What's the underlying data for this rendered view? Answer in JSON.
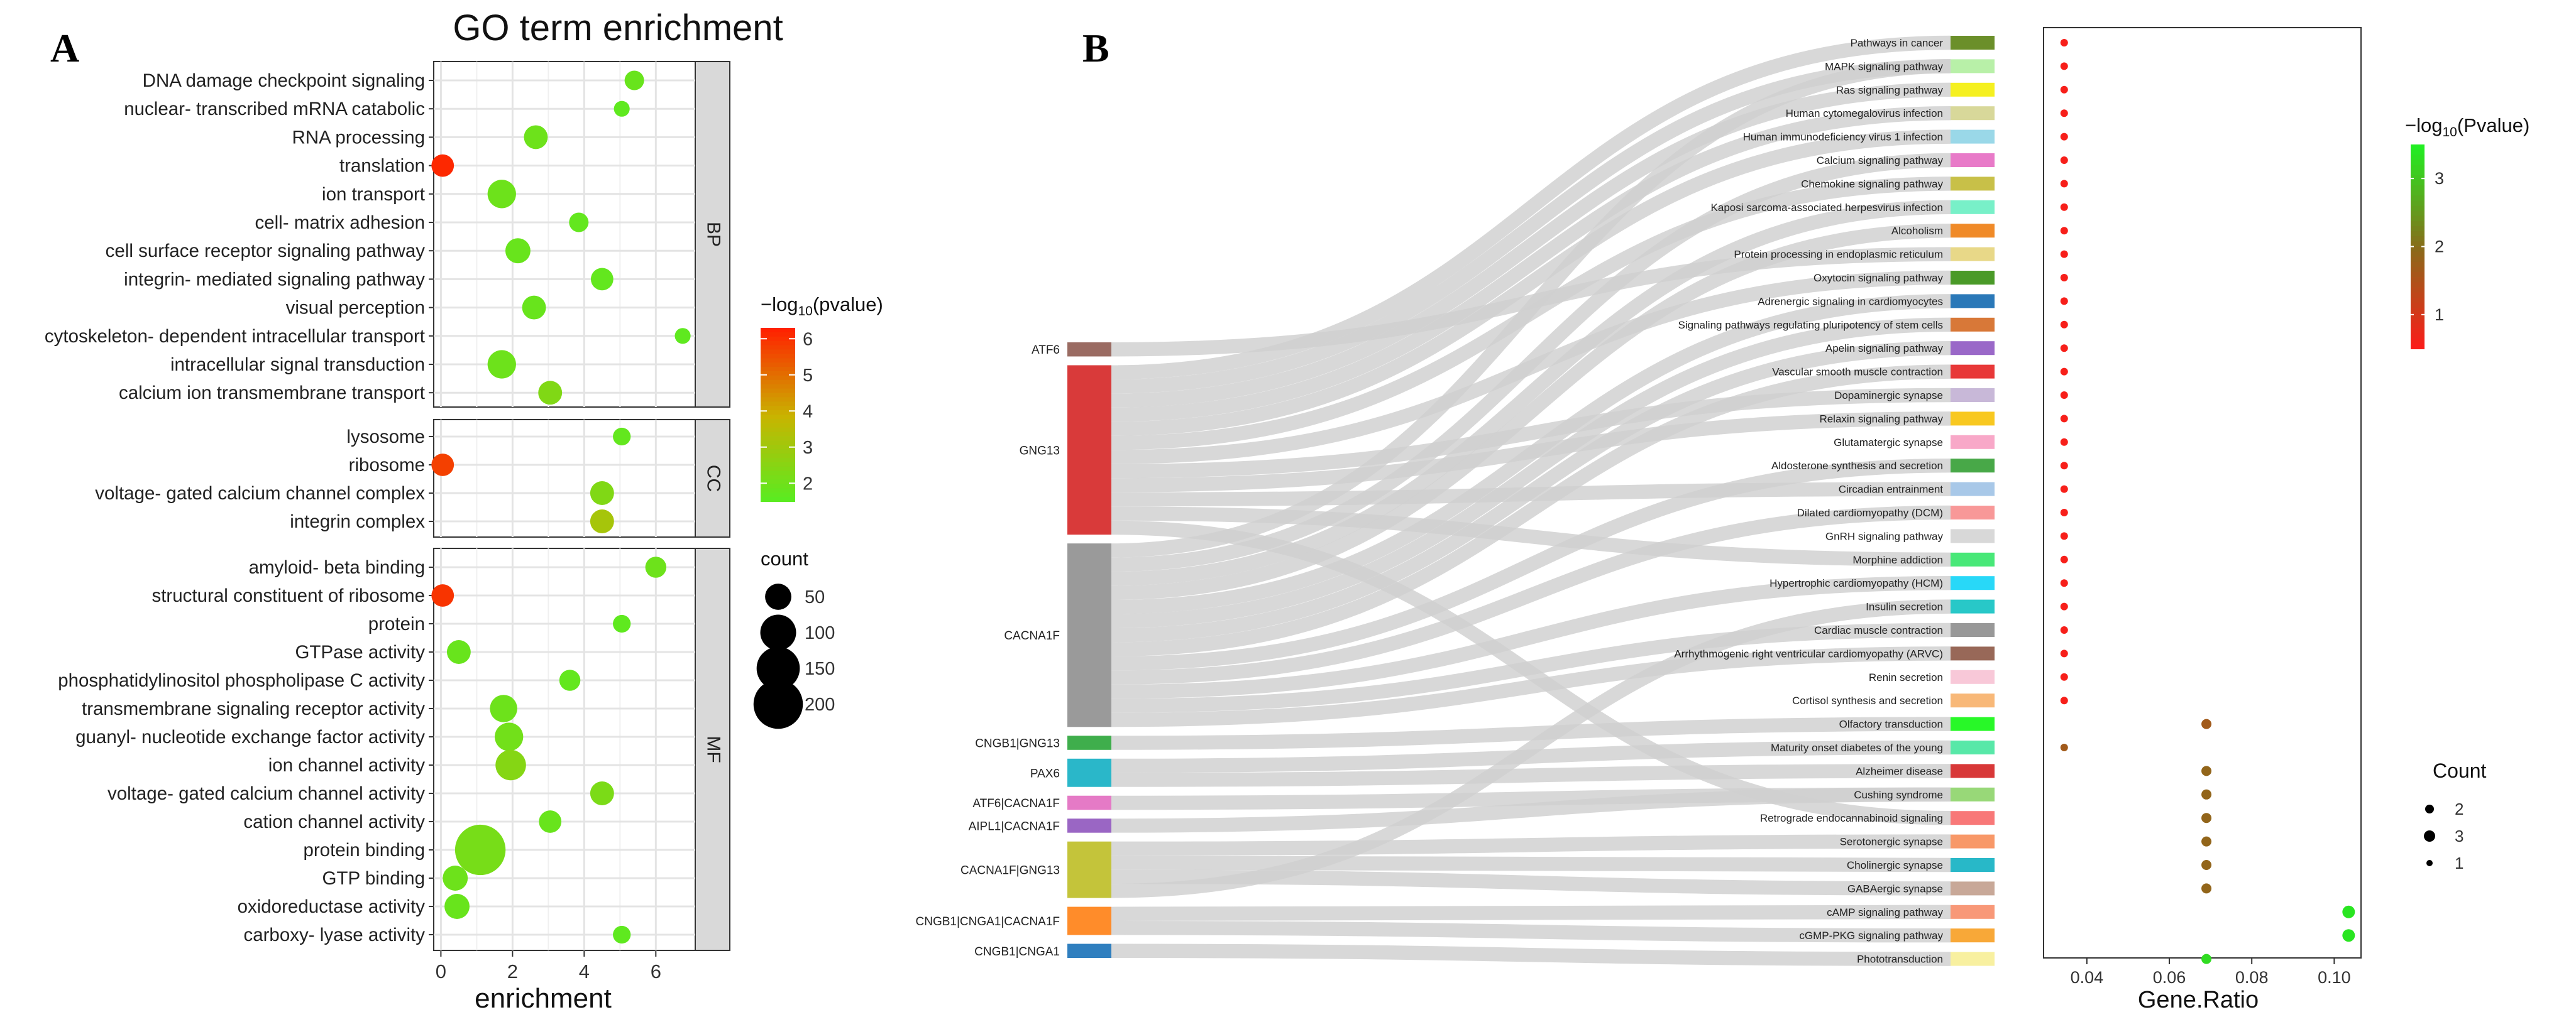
{
  "figure": {
    "panel_a_letter": "A",
    "panel_b_letter": "B"
  },
  "chart_data": [
    {
      "id": "panel_a",
      "type": "scatter",
      "title": "GO term enrichment",
      "xlabel": "enrichment",
      "ylabel": "",
      "xlim": [
        -0.2,
        7.1
      ],
      "xticks": [
        0,
        2,
        4,
        6
      ],
      "grid": true,
      "colors": {
        "low": "#55ee22",
        "mid": "#c8b400",
        "high": "#ff2200"
      },
      "legend_color_title_prefix": "−log",
      "legend_color_title_sub": "10",
      "legend_color_title_suffix": "(pvalue)",
      "legend_color_ticks": [
        2,
        3,
        4,
        5,
        6
      ],
      "legend_color_range": [
        1.5,
        6.3
      ],
      "legend_size_title": "count",
      "legend_size_values": [
        50,
        100,
        150,
        200
      ],
      "facets": [
        {
          "label": "BP",
          "terms": [
            {
              "term": "DNA damage checkpoint signaling",
              "x": 5.4,
              "neglogp": 1.9,
              "count": 25
            },
            {
              "term": "nuclear- transcribed mRNA catabolic",
              "x": 5.05,
              "neglogp": 1.7,
              "count": 15
            },
            {
              "term": "RNA processing",
              "x": 2.65,
              "neglogp": 2.0,
              "count": 40
            },
            {
              "term": "translation",
              "x": 0.05,
              "neglogp": 6.2,
              "count": 35
            },
            {
              "term": "ion transport",
              "x": 1.7,
              "neglogp": 2.0,
              "count": 60
            },
            {
              "term": "cell- matrix adhesion",
              "x": 3.85,
              "neglogp": 1.8,
              "count": 25
            },
            {
              "term": "cell surface receptor signaling pathway",
              "x": 2.15,
              "neglogp": 1.9,
              "count": 45
            },
            {
              "term": "integrin- mediated signaling pathway",
              "x": 4.5,
              "neglogp": 1.8,
              "count": 35
            },
            {
              "term": "visual perception",
              "x": 2.6,
              "neglogp": 1.9,
              "count": 40
            },
            {
              "term": "cytoskeleton- dependent intracellular transport",
              "x": 6.75,
              "neglogp": 1.7,
              "count": 15
            },
            {
              "term": "intracellular signal transduction",
              "x": 1.7,
              "neglogp": 2.0,
              "count": 60
            },
            {
              "term": "calcium ion transmembrane transport",
              "x": 3.05,
              "neglogp": 2.4,
              "count": 40
            }
          ]
        },
        {
          "label": "CC",
          "terms": [
            {
              "term": "lysosome",
              "x": 5.05,
              "neglogp": 1.8,
              "count": 20
            },
            {
              "term": "ribosome",
              "x": 0.05,
              "neglogp": 5.8,
              "count": 35
            },
            {
              "term": "voltage- gated calcium channel complex",
              "x": 4.5,
              "neglogp": 2.4,
              "count": 40
            },
            {
              "term": "integrin complex",
              "x": 4.5,
              "neglogp": 3.2,
              "count": 40
            }
          ]
        },
        {
          "label": "MF",
          "terms": [
            {
              "term": "amyloid- beta binding",
              "x": 6.0,
              "neglogp": 2.0,
              "count": 30
            },
            {
              "term": "structural constituent of ribosome",
              "x": 0.05,
              "neglogp": 6.0,
              "count": 35
            },
            {
              "term": "protein",
              "x": 5.05,
              "neglogp": 1.7,
              "count": 20
            },
            {
              "term": "GTPase activity",
              "x": 0.5,
              "neglogp": 1.9,
              "count": 40
            },
            {
              "term": "phosphatidylinositol phospholipase C activity",
              "x": 3.6,
              "neglogp": 1.8,
              "count": 30
            },
            {
              "term": "transmembrane signaling receptor activity",
              "x": 1.75,
              "neglogp": 2.0,
              "count": 55
            },
            {
              "term": "guanyl- nucleotide exchange factor activity",
              "x": 1.9,
              "neglogp": 2.1,
              "count": 60
            },
            {
              "term": "ion channel activity",
              "x": 1.95,
              "neglogp": 2.5,
              "count": 70
            },
            {
              "term": "voltage- gated calcium channel activity",
              "x": 4.5,
              "neglogp": 2.3,
              "count": 40
            },
            {
              "term": "cation channel activity",
              "x": 3.05,
              "neglogp": 1.9,
              "count": 35
            },
            {
              "term": "protein binding",
              "x": 1.1,
              "neglogp": 2.2,
              "count": 210
            },
            {
              "term": "GTP binding",
              "x": 0.4,
              "neglogp": 2.0,
              "count": 45
            },
            {
              "term": "oxidoreductase activity",
              "x": 0.45,
              "neglogp": 1.9,
              "count": 45
            },
            {
              "term": "carboxy- lyase activity",
              "x": 5.05,
              "neglogp": 1.7,
              "count": 20
            }
          ]
        }
      ]
    },
    {
      "id": "panel_b_sankey",
      "type": "sankey",
      "genes": [
        {
          "name": "ATF6",
          "color": "#9a6b62",
          "weight": 1
        },
        {
          "name": "GNG13",
          "color": "#d93a3a",
          "weight": 12
        },
        {
          "name": "CACNA1F",
          "color": "#9a9a9a",
          "weight": 13
        },
        {
          "name": "CNGB1|GNG13",
          "color": "#3fae4c",
          "weight": 1
        },
        {
          "name": "PAX6",
          "color": "#2ab7c9",
          "weight": 2
        },
        {
          "name": "ATF6|CACNA1F",
          "color": "#e57ac6",
          "weight": 1
        },
        {
          "name": "AIPL1|CACNA1F",
          "color": "#9a66c4",
          "weight": 1
        },
        {
          "name": "CACNA1F|GNG13",
          "color": "#c4c43a",
          "weight": 4
        },
        {
          "name": "CNGB1|CNGA1|CACNA1F",
          "color": "#ff8c2a",
          "weight": 2
        },
        {
          "name": "CNGB1|CNGA1",
          "color": "#2f7fbf",
          "weight": 1
        }
      ],
      "pathways": [
        {
          "name": "Pathways in cancer",
          "color": "#6b8f2a"
        },
        {
          "name": "MAPK signaling pathway",
          "color": "#b8f0a8"
        },
        {
          "name": "Ras signaling pathway",
          "color": "#f5f020"
        },
        {
          "name": "Human cytomegalovirus infection",
          "color": "#d8d89a"
        },
        {
          "name": "Human immunodeficiency virus 1 infection",
          "color": "#9ad8e8"
        },
        {
          "name": "Calcium signaling pathway",
          "color": "#e87ac8"
        },
        {
          "name": "Chemokine signaling pathway",
          "color": "#c8c048"
        },
        {
          "name": "Kaposi sarcoma-associated herpesvirus infection",
          "color": "#78f0c8"
        },
        {
          "name": "Alcoholism",
          "color": "#f08a28"
        },
        {
          "name": "Protein processing in endoplasmic reticulum",
          "color": "#e8d888"
        },
        {
          "name": "Oxytocin signaling pathway",
          "color": "#4a9a28"
        },
        {
          "name": "Adrenergic signaling in cardiomyocytes",
          "color": "#2a78b8"
        },
        {
          "name": "Signaling pathways regulating pluripotency of stem cells",
          "color": "#d87838"
        },
        {
          "name": "Apelin signaling pathway",
          "color": "#9a68c8"
        },
        {
          "name": "Vascular smooth muscle contraction",
          "color": "#e83838"
        },
        {
          "name": "Dopaminergic synapse",
          "color": "#c8b8d8"
        },
        {
          "name": "Relaxin signaling pathway",
          "color": "#f8c820"
        },
        {
          "name": "Glutamatergic synapse",
          "color": "#f8a8c8"
        },
        {
          "name": "Aldosterone synthesis and secretion",
          "color": "#48a848"
        },
        {
          "name": "Circadian entrainment",
          "color": "#a8c8e8"
        },
        {
          "name": "Dilated cardiomyopathy (DCM)",
          "color": "#f89898"
        },
        {
          "name": "GnRH signaling pathway",
          "color": "#d8d8d8"
        },
        {
          "name": "Morphine addiction",
          "color": "#48e878"
        },
        {
          "name": "Hypertrophic cardiomyopathy (HCM)",
          "color": "#28d8f8"
        },
        {
          "name": "Insulin secretion",
          "color": "#28c8c8"
        },
        {
          "name": "Cardiac muscle contraction",
          "color": "#989898"
        },
        {
          "name": "Arrhythmogenic right ventricular cardiomyopathy (ARVC)",
          "color": "#986858"
        },
        {
          "name": "Renin secretion",
          "color": "#f8c8d8"
        },
        {
          "name": "Cortisol synthesis and secretion",
          "color": "#f8b878"
        },
        {
          "name": "Olfactory transduction",
          "color": "#28f828"
        },
        {
          "name": "Maturity onset diabetes of the young",
          "color": "#58e8a8"
        },
        {
          "name": "Alzheimer disease",
          "color": "#d83838"
        },
        {
          "name": "Cushing syndrome",
          "color": "#98d878"
        },
        {
          "name": "Retrograde endocannabinoid signaling",
          "color": "#f87878"
        },
        {
          "name": "Serotonergic synapse",
          "color": "#f89868"
        },
        {
          "name": "Cholinergic synapse",
          "color": "#28b8c8"
        },
        {
          "name": "GABAergic synapse",
          "color": "#c8a898"
        },
        {
          "name": "cAMP signaling pathway",
          "color": "#f89878"
        },
        {
          "name": "cGMP-PKG signaling pathway",
          "color": "#f8a838"
        },
        {
          "name": "Phototransduction",
          "color": "#f8f0a0"
        }
      ],
      "links": [
        [
          "ATF6",
          9
        ],
        [
          "GNG13",
          0
        ],
        [
          "GNG13",
          1
        ],
        [
          "GNG13",
          2
        ],
        [
          "GNG13",
          3
        ],
        [
          "GNG13",
          4
        ],
        [
          "GNG13",
          6
        ],
        [
          "GNG13",
          10
        ],
        [
          "GNG13",
          15
        ],
        [
          "GNG13",
          16
        ],
        [
          "GNG13",
          19
        ],
        [
          "GNG13",
          22
        ],
        [
          "GNG13",
          33
        ],
        [
          "CACNA1F",
          1
        ],
        [
          "CACNA1F",
          5
        ],
        [
          "CACNA1F",
          7
        ],
        [
          "CACNA1F",
          8
        ],
        [
          "CACNA1F",
          11
        ],
        [
          "CACNA1F",
          12
        ],
        [
          "CACNA1F",
          13
        ],
        [
          "CACNA1F",
          14
        ],
        [
          "CACNA1F",
          18
        ],
        [
          "CACNA1F",
          20
        ],
        [
          "CACNA1F",
          23
        ],
        [
          "CACNA1F",
          25
        ],
        [
          "CACNA1F",
          26
        ],
        [
          "CNGB1|GNG13",
          29
        ],
        [
          "PAX6",
          30
        ],
        [
          "PAX6",
          31
        ],
        [
          "ATF6|CACNA1F",
          32
        ],
        [
          "AIPL1|CACNA1F",
          32
        ],
        [
          "CACNA1F|GNG13",
          34
        ],
        [
          "CACNA1F|GNG13",
          35
        ],
        [
          "CACNA1F|GNG13",
          36
        ],
        [
          "CACNA1F|GNG13",
          24
        ],
        [
          "CNGB1|CNGA1|CACNA1F",
          37
        ],
        [
          "CNGB1|CNGA1|CACNA1F",
          38
        ],
        [
          "CNGB1|CNGA1",
          39
        ]
      ]
    },
    {
      "id": "panel_b_dots",
      "type": "scatter",
      "xlabel": "Gene.Ratio",
      "ylabel": "",
      "xlim": [
        0.0295,
        0.1065
      ],
      "xticks": [
        0.04,
        0.06,
        0.08,
        0.1
      ],
      "xticklabels": [
        "0.04",
        "0.06",
        "0.08",
        "0.10"
      ],
      "grid": false,
      "colors": {
        "low": "#ff1a1a",
        "mid": "#8a6a1a",
        "high": "#22ee22"
      },
      "legend_color_title_prefix": "−log",
      "legend_color_title_sub": "10",
      "legend_color_title_suffix": "(Pvalue)",
      "legend_color_ticks": [
        1,
        2,
        3
      ],
      "legend_color_range": [
        0.5,
        3.5
      ],
      "legend_size_title": "Count",
      "legend_size_entries": [
        {
          "label": "2",
          "count": 2
        },
        {
          "label": "3",
          "count": 3
        },
        {
          "label": "1",
          "count": 1
        }
      ],
      "points": [
        {
          "x": 0.0345,
          "neglogp": 0.6,
          "count": 1
        },
        {
          "x": 0.0345,
          "neglogp": 0.6,
          "count": 1
        },
        {
          "x": 0.0345,
          "neglogp": 0.6,
          "count": 1
        },
        {
          "x": 0.0345,
          "neglogp": 0.6,
          "count": 1
        },
        {
          "x": 0.0345,
          "neglogp": 0.6,
          "count": 1
        },
        {
          "x": 0.0345,
          "neglogp": 0.6,
          "count": 1
        },
        {
          "x": 0.0345,
          "neglogp": 0.6,
          "count": 1
        },
        {
          "x": 0.0345,
          "neglogp": 0.6,
          "count": 1
        },
        {
          "x": 0.0345,
          "neglogp": 0.6,
          "count": 1
        },
        {
          "x": 0.0345,
          "neglogp": 0.6,
          "count": 1
        },
        {
          "x": 0.0345,
          "neglogp": 0.6,
          "count": 1
        },
        {
          "x": 0.0345,
          "neglogp": 0.6,
          "count": 1
        },
        {
          "x": 0.0345,
          "neglogp": 0.6,
          "count": 1
        },
        {
          "x": 0.0345,
          "neglogp": 0.6,
          "count": 1
        },
        {
          "x": 0.0345,
          "neglogp": 0.6,
          "count": 1
        },
        {
          "x": 0.0345,
          "neglogp": 0.6,
          "count": 1
        },
        {
          "x": 0.0345,
          "neglogp": 0.6,
          "count": 1
        },
        {
          "x": 0.0345,
          "neglogp": 0.6,
          "count": 1
        },
        {
          "x": 0.0345,
          "neglogp": 0.6,
          "count": 1
        },
        {
          "x": 0.0345,
          "neglogp": 0.6,
          "count": 1
        },
        {
          "x": 0.0345,
          "neglogp": 0.6,
          "count": 1
        },
        {
          "x": 0.0345,
          "neglogp": 0.6,
          "count": 1
        },
        {
          "x": 0.0345,
          "neglogp": 0.6,
          "count": 1
        },
        {
          "x": 0.0345,
          "neglogp": 0.6,
          "count": 1
        },
        {
          "x": 0.0345,
          "neglogp": 0.6,
          "count": 1
        },
        {
          "x": 0.0345,
          "neglogp": 0.6,
          "count": 1
        },
        {
          "x": 0.0345,
          "neglogp": 0.6,
          "count": 1
        },
        {
          "x": 0.0345,
          "neglogp": 0.6,
          "count": 1
        },
        {
          "x": 0.0345,
          "neglogp": 0.6,
          "count": 1
        },
        {
          "x": 0.069,
          "neglogp": 1.7,
          "count": 2
        },
        {
          "x": 0.0345,
          "neglogp": 1.7,
          "count": 1
        },
        {
          "x": 0.069,
          "neglogp": 1.9,
          "count": 2
        },
        {
          "x": 0.069,
          "neglogp": 1.9,
          "count": 2
        },
        {
          "x": 0.069,
          "neglogp": 1.9,
          "count": 2
        },
        {
          "x": 0.069,
          "neglogp": 1.9,
          "count": 2
        },
        {
          "x": 0.069,
          "neglogp": 1.9,
          "count": 2
        },
        {
          "x": 0.069,
          "neglogp": 1.9,
          "count": 2
        },
        {
          "x": 0.1035,
          "neglogp": 3.4,
          "count": 3
        },
        {
          "x": 0.1035,
          "neglogp": 3.4,
          "count": 3
        },
        {
          "x": 0.069,
          "neglogp": 3.3,
          "count": 2
        }
      ]
    }
  ]
}
